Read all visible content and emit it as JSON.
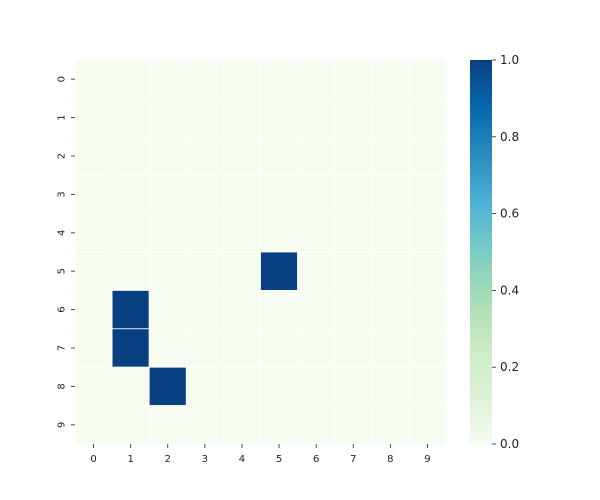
{
  "chart_data": {
    "type": "heatmap",
    "title": "",
    "xlabel": "",
    "ylabel": "",
    "x_categories": [
      "0",
      "1",
      "2",
      "3",
      "4",
      "5",
      "6",
      "7",
      "8",
      "9"
    ],
    "y_categories": [
      "0",
      "1",
      "2",
      "3",
      "4",
      "5",
      "6",
      "7",
      "8",
      "9"
    ],
    "values": [
      [
        0,
        0,
        0,
        0,
        0,
        0,
        0,
        0,
        0,
        0
      ],
      [
        0,
        0,
        0,
        0,
        0,
        0,
        0,
        0,
        0,
        0
      ],
      [
        0,
        0,
        0,
        0,
        0,
        0,
        0,
        0,
        0,
        0
      ],
      [
        0,
        0,
        0,
        0,
        0,
        0,
        0,
        0,
        0,
        0
      ],
      [
        0,
        0,
        0,
        0,
        0,
        0,
        0,
        0,
        0,
        0
      ],
      [
        0,
        0,
        0,
        0,
        0,
        1,
        0,
        0,
        0,
        0
      ],
      [
        0,
        1,
        0,
        0,
        0,
        0,
        0,
        0,
        0,
        0
      ],
      [
        0,
        1,
        0,
        0,
        0,
        0,
        0,
        0,
        0,
        0
      ],
      [
        0,
        0,
        1,
        0,
        0,
        0,
        0,
        0,
        0,
        0
      ],
      [
        0,
        0,
        0,
        0,
        0,
        0,
        0,
        0,
        0,
        0
      ]
    ],
    "vmin": 0,
    "vmax": 1,
    "colormap": "GnBu",
    "color_low": "#f7fcf0",
    "color_high": "#084081",
    "cell_border_color": "#ffffff",
    "colorbar": {
      "ticks": [
        0.0,
        0.2,
        0.4,
        0.6,
        0.8,
        1.0
      ],
      "tick_labels": [
        "0.0",
        "0.2",
        "0.4",
        "0.6",
        "0.8",
        "1.0"
      ],
      "placement": "right"
    },
    "legend": "none",
    "grid": false
  }
}
